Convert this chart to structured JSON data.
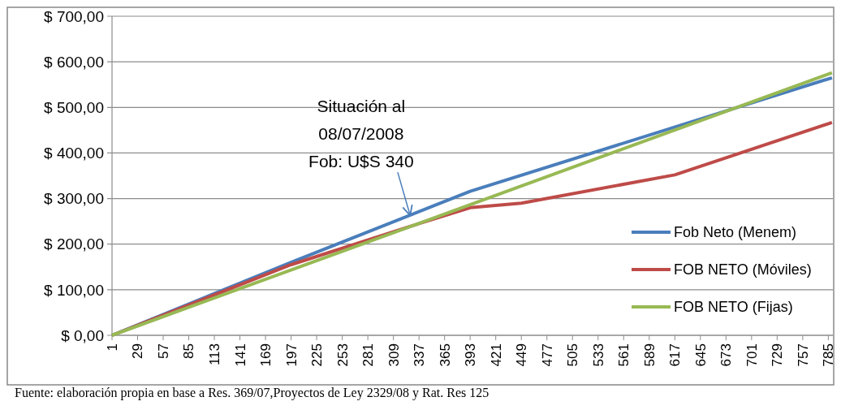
{
  "chart_data": {
    "type": "line",
    "xlim": [
      1,
      790
    ],
    "xticks": [
      1,
      29,
      57,
      85,
      113,
      141,
      169,
      197,
      225,
      253,
      281,
      309,
      337,
      365,
      393,
      421,
      449,
      477,
      505,
      533,
      561,
      589,
      617,
      645,
      673,
      701,
      729,
      757,
      785
    ],
    "ylim": [
      0,
      700
    ],
    "yticks": [
      {
        "value": 0,
        "label": "$ 0,00"
      },
      {
        "value": 100,
        "label": "$ 100,00"
      },
      {
        "value": 200,
        "label": "$ 200,00"
      },
      {
        "value": 300,
        "label": "$ 300,00"
      },
      {
        "value": 400,
        "label": "$ 400,00"
      },
      {
        "value": 500,
        "label": "$ 500,00"
      },
      {
        "value": 600,
        "label": "$ 600,00"
      },
      {
        "value": 700,
        "label": "$ 700,00"
      }
    ],
    "grid": "y",
    "legend": "right",
    "marker": "none",
    "line_style": "solid",
    "series": [
      {
        "name": "Fob Neto (Menem)",
        "color": "#4a7ebb",
        "x": [
          1,
          197,
          393,
          789
        ],
        "values": [
          0,
          160,
          316,
          565
        ]
      },
      {
        "name": "FOB NETO (Móviles)",
        "color": "#be4b48",
        "x": [
          1,
          197,
          337,
          393,
          449,
          617,
          789
        ],
        "values": [
          0,
          155,
          245,
          280,
          290,
          352,
          467
        ]
      },
      {
        "name": "FOB NETO (Fijas)",
        "color": "#98b954",
        "x": [
          1,
          789
        ],
        "values": [
          0,
          576
        ]
      }
    ],
    "annotations": [
      {
        "text": "Situación al\n08/07/2008\nFob: U$S 340",
        "x": 327,
        "y": 258
      },
      "Fuente: elaboración propia en base a Res. 369/07,Proyectos de Ley 2329/08 y Rat. Res 125"
    ]
  }
}
